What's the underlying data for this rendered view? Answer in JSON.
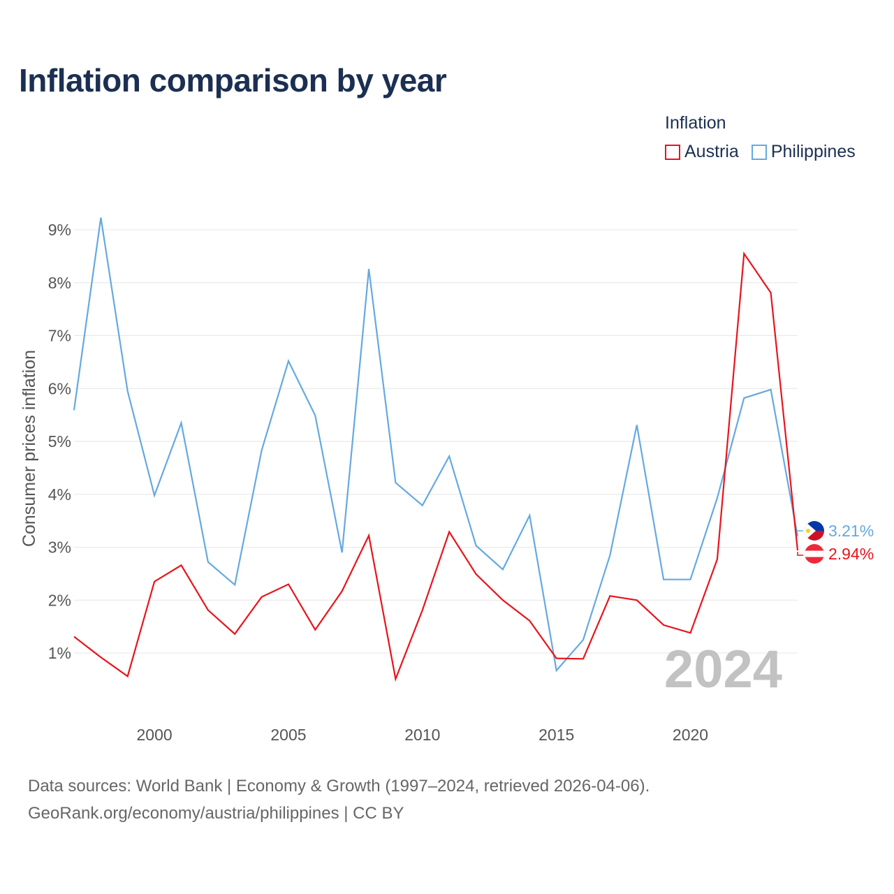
{
  "title": "Inflation comparison by year",
  "legend": {
    "title": "Inflation",
    "items": [
      {
        "label": "Austria",
        "color": "#e8141c"
      },
      {
        "label": "Philippines",
        "color": "#65a9e0"
      }
    ]
  },
  "sources": {
    "line1": "Data sources: World Bank | Economy & Growth (1997–2024, retrieved 2026-04-06).",
    "line2": "GeoRank.org/economy/austria/philippines | CC BY"
  },
  "chart_data": {
    "type": "line",
    "title": "Inflation comparison by year",
    "xlabel": "",
    "ylabel": "Consumer prices inflation",
    "x": [
      1997,
      1998,
      1999,
      2000,
      2001,
      2002,
      2003,
      2004,
      2005,
      2006,
      2007,
      2008,
      2009,
      2010,
      2011,
      2012,
      2013,
      2014,
      2015,
      2016,
      2017,
      2018,
      2019,
      2020,
      2021,
      2022,
      2023,
      2024
    ],
    "xlim": [
      1997,
      2024
    ],
    "ylim": [
      0,
      9.3
    ],
    "xticks": [
      2000,
      2005,
      2010,
      2015,
      2020
    ],
    "yticks": [
      1,
      2,
      3,
      4,
      5,
      6,
      7,
      8,
      9
    ],
    "ytick_labels": [
      "1%",
      "2%",
      "3%",
      "4%",
      "5%",
      "6%",
      "7%",
      "8%",
      "9%"
    ],
    "grid": true,
    "year_label": "2024",
    "series": [
      {
        "name": "Austria",
        "color": "#e8141c",
        "end_label": "2.94%",
        "values": [
          1.31,
          0.92,
          0.56,
          2.35,
          2.66,
          1.81,
          1.36,
          2.06,
          2.3,
          1.44,
          2.17,
          3.22,
          0.51,
          1.81,
          3.29,
          2.49,
          2.0,
          1.61,
          0.9,
          0.89,
          2.08,
          2.0,
          1.53,
          1.38,
          2.77,
          8.55,
          7.81,
          2.94
        ]
      },
      {
        "name": "Philippines",
        "color": "#65a9e0",
        "end_label": "3.21%",
        "values": [
          5.59,
          9.23,
          5.95,
          3.98,
          5.35,
          2.72,
          2.29,
          4.83,
          6.52,
          5.49,
          2.9,
          8.26,
          4.22,
          3.79,
          4.72,
          3.03,
          2.58,
          3.6,
          0.67,
          1.25,
          2.85,
          5.31,
          2.39,
          2.39,
          3.93,
          5.82,
          5.98,
          3.21
        ]
      }
    ]
  }
}
